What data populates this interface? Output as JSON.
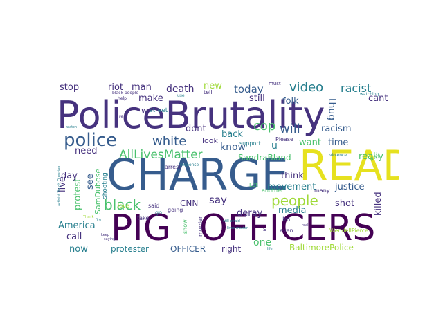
{
  "palette": {
    "purple": "#440154",
    "indigo": "#46327e",
    "blue": "#365c8d",
    "steel": "#277f8e",
    "teal": "#1fa187",
    "green": "#4ac16d",
    "lime": "#a0da39",
    "yellow": "#fde725"
  },
  "words": [
    {
      "text": "PoliceBrutality",
      "color": "#46327e"
    },
    {
      "text": "CHARGE",
      "color": "#365c8d"
    },
    {
      "text": "READ",
      "color": "#e6e11f"
    },
    {
      "text": "PIG",
      "color": "#440154"
    },
    {
      "text": "OFFICERS",
      "color": "#440154"
    },
    {
      "text": "police",
      "color": "#365c8d"
    },
    {
      "text": "AllLivesMatter",
      "color": "#4ac16d"
    },
    {
      "text": "black",
      "color": "#4ac16d"
    },
    {
      "text": "people",
      "color": "#a0da39"
    },
    {
      "text": "white",
      "color": "#365c8d"
    },
    {
      "text": "cop",
      "color": "#4ac16d"
    },
    {
      "text": "will",
      "color": "#365c8d"
    },
    {
      "text": "video",
      "color": "#277f8e"
    },
    {
      "text": "racist",
      "color": "#277f8e"
    },
    {
      "text": "thug",
      "color": "#365c8d"
    },
    {
      "text": "today",
      "color": "#365c8d"
    },
    {
      "text": "death",
      "color": "#46327e"
    },
    {
      "text": "riot",
      "color": "#46327e"
    },
    {
      "text": "man",
      "color": "#46327e"
    },
    {
      "text": "stop",
      "color": "#46327e"
    },
    {
      "text": "new",
      "color": "#a0da39"
    },
    {
      "text": "still",
      "color": "#46327e"
    },
    {
      "text": "folk",
      "color": "#365c8d"
    },
    {
      "text": "cant",
      "color": "#46327e"
    },
    {
      "text": "make",
      "color": "#46327e"
    },
    {
      "text": "dont",
      "color": "#46327e"
    },
    {
      "text": "back",
      "color": "#277f8e"
    },
    {
      "text": "racism",
      "color": "#365c8d"
    },
    {
      "text": "need",
      "color": "#46327e"
    },
    {
      "text": "look",
      "color": "#46327e"
    },
    {
      "text": "know",
      "color": "#365c8d"
    },
    {
      "text": "u",
      "color": "#277f8e"
    },
    {
      "text": "want",
      "color": "#4ac16d"
    },
    {
      "text": "time",
      "color": "#365c8d"
    },
    {
      "text": "really",
      "color": "#4ac16d"
    },
    {
      "text": "SandraBland",
      "color": "#4ac16d"
    },
    {
      "text": "think",
      "color": "#46327e"
    },
    {
      "text": "movement",
      "color": "#277f8e"
    },
    {
      "text": "justice",
      "color": "#365c8d"
    },
    {
      "text": "live",
      "color": "#46327e"
    },
    {
      "text": "day",
      "color": "#46327e"
    },
    {
      "text": "protest",
      "color": "#4ac16d"
    },
    {
      "text": "SamDubose",
      "color": "#4ac16d"
    },
    {
      "text": "see",
      "color": "#365c8d"
    },
    {
      "text": "say",
      "color": "#46327e"
    },
    {
      "text": "CNN",
      "color": "#46327e"
    },
    {
      "text": "media",
      "color": "#277f8e"
    },
    {
      "text": "shot",
      "color": "#46327e"
    },
    {
      "text": "deray",
      "color": "#46327e"
    },
    {
      "text": "killed",
      "color": "#46327e"
    },
    {
      "text": "America",
      "color": "#277f8e"
    },
    {
      "text": "call",
      "color": "#46327e"
    },
    {
      "text": "now",
      "color": "#277f8e"
    },
    {
      "text": "protester",
      "color": "#277f8e"
    },
    {
      "text": "OFFICER",
      "color": "#365c8d"
    },
    {
      "text": "right",
      "color": "#46327e"
    },
    {
      "text": "one",
      "color": "#4ac16d"
    },
    {
      "text": "BaltimorePolice",
      "color": "#a0da39"
    },
    {
      "text": "shooting",
      "color": "#277f8e"
    },
    {
      "text": "w",
      "color": "#46327e"
    },
    {
      "text": "street",
      "color": "#277f8e"
    },
    {
      "text": "going",
      "color": "#46327e"
    },
    {
      "text": "said",
      "color": "#46327e"
    },
    {
      "text": "go",
      "color": "#277f8e"
    },
    {
      "text": "take",
      "color": "#46327e"
    },
    {
      "text": "love",
      "color": "#a0da39"
    },
    {
      "text": "arrest",
      "color": "#46327e"
    },
    {
      "text": "tell",
      "color": "#46327e"
    },
    {
      "text": "must",
      "color": "#46327e"
    },
    {
      "text": "support",
      "color": "#277f8e"
    },
    {
      "text": "Please",
      "color": "#46327e"
    },
    {
      "text": "another",
      "color": "#4ac16d"
    },
    {
      "text": "many",
      "color": "#46327e"
    },
    {
      "text": "way",
      "color": "#4ac16d"
    },
    {
      "text": "Let",
      "color": "#4ac16d"
    },
    {
      "text": "Im",
      "color": "#46327e"
    },
    {
      "text": "even",
      "color": "#46327e"
    },
    {
      "text": "s",
      "color": "#46327e"
    },
    {
      "text": "show",
      "color": "#4ac16d"
    },
    {
      "text": "murder",
      "color": "#46327e"
    },
    {
      "text": "WendellPierce",
      "color": "#a0da39"
    },
    {
      "text": "black people",
      "color": "#46327e"
    },
    {
      "text": "help",
      "color": "#46327e"
    },
    {
      "text": "re",
      "color": "#46327e"
    },
    {
      "text": "use",
      "color": "#277f8e"
    },
    {
      "text": "response",
      "color": "#277f8e"
    },
    {
      "text": "violence",
      "color": "#277f8e"
    },
    {
      "text": "watching",
      "color": "#277f8e"
    },
    {
      "text": "activist Tough Question",
      "color": "#277f8e"
    },
    {
      "text": "watch",
      "color": "#277f8e"
    },
    {
      "text": "fire",
      "color": "#277f8e"
    },
    {
      "text": "Thank",
      "color": "#a0da39"
    },
    {
      "text": "keep",
      "color": "#46327e"
    },
    {
      "text": "saying",
      "color": "#46327e"
    },
    {
      "text": "still afraid",
      "color": "#277f8e"
    },
    {
      "text": "lives matter",
      "color": "#277f8e"
    },
    {
      "text": "real",
      "color": "#46327e"
    },
    {
      "text": "life",
      "color": "#277f8e"
    }
  ]
}
